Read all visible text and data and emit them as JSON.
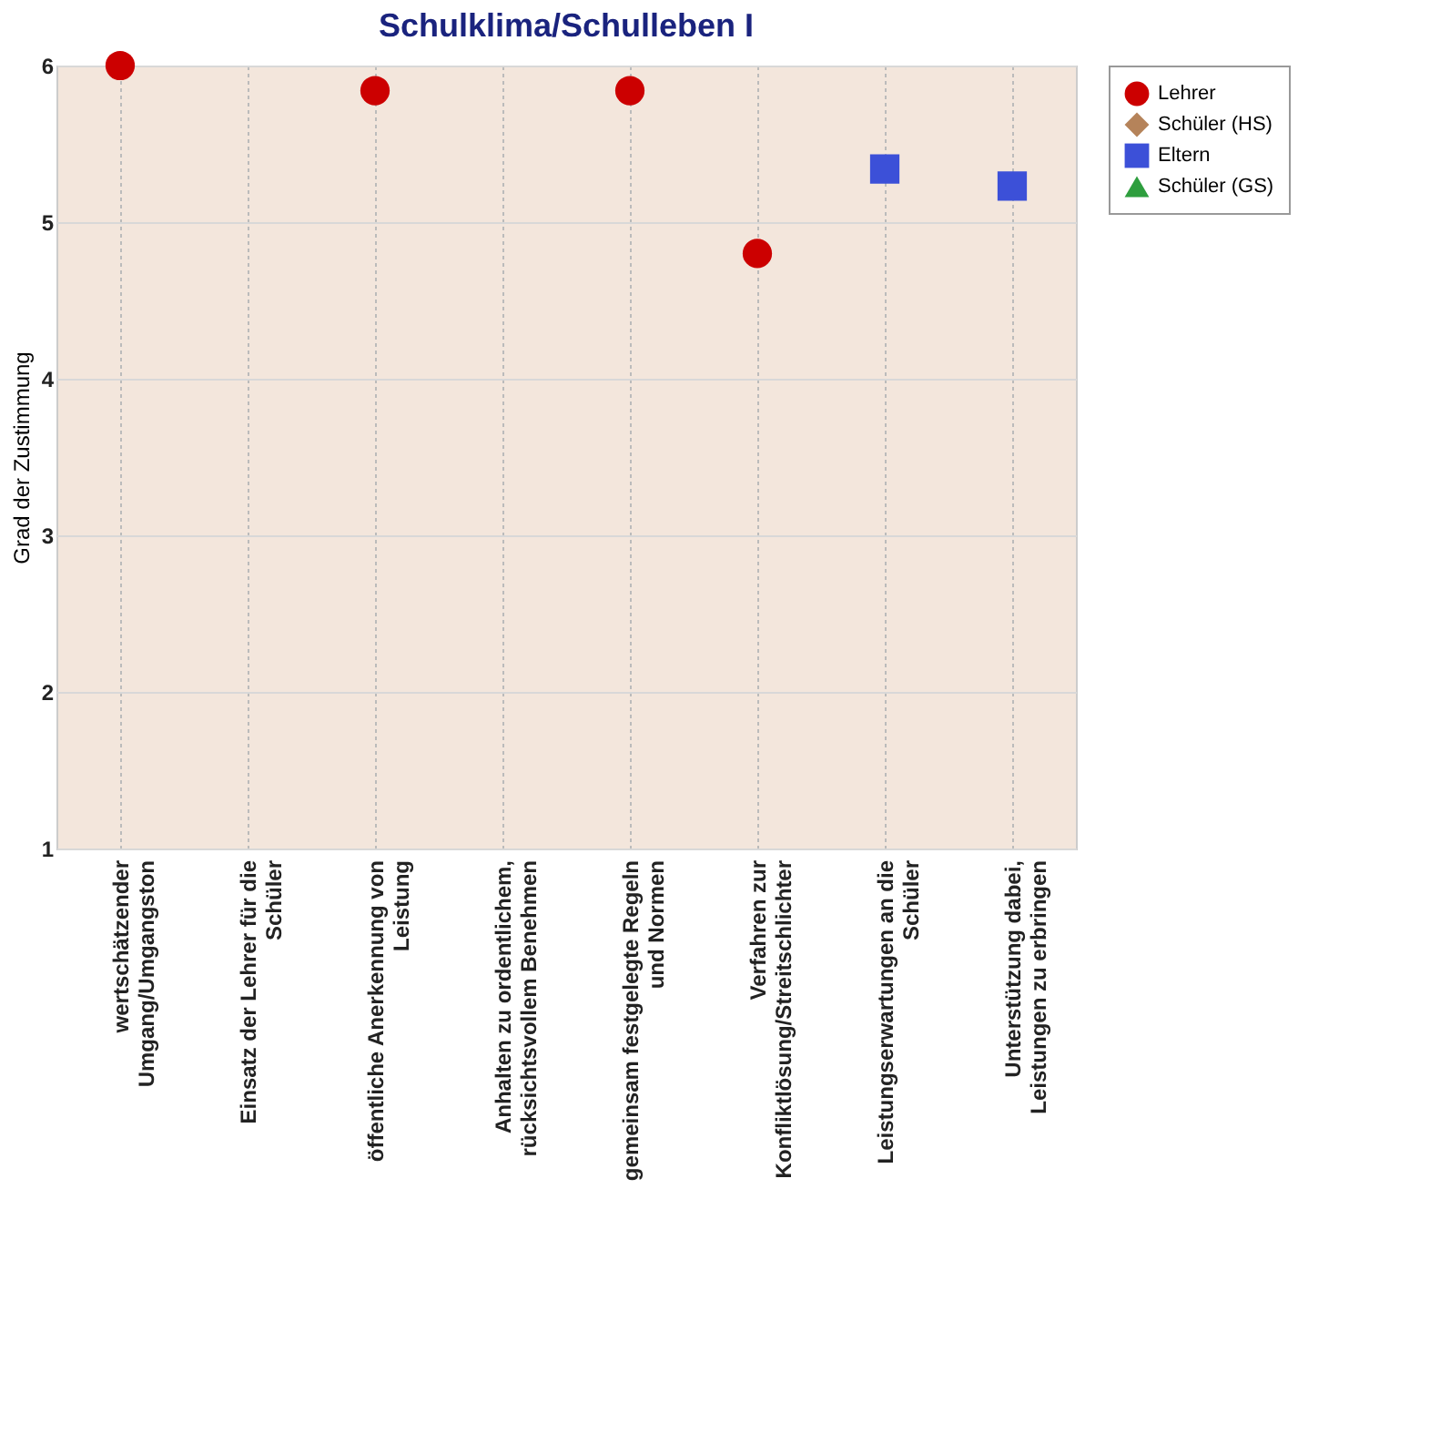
{
  "chart_data": {
    "type": "scatter",
    "title": "Schulklima/Schulleben I",
    "ylabel": "Grad der Zustimmung",
    "categories": [
      "wertschätzender\nUmgang/Umgangston",
      "Einsatz der Lehrer für die\nSchüler",
      "öffentliche Anerkennung von\nLeistung",
      "Anhalten zu ordentlichem,\nrücksichtsvollem Benehmen",
      "gemeinsam festgelegte Regeln\nund Normen",
      "Verfahren zur\nKonfliktlösung/Streitschlichter",
      "Leistungserwartungen an die\nSchüler",
      "Unterstützung dabei,\nLeistungen zu erbringen"
    ],
    "series": [
      {
        "name": "Lehrer",
        "color": "#cc0000",
        "marker": "circle",
        "values": [
          6.0,
          null,
          5.84,
          null,
          5.84,
          4.8,
          null,
          null
        ]
      },
      {
        "name": "Schüler (HS)",
        "color": "#b5835a",
        "marker": "diamond",
        "values": [
          null,
          null,
          null,
          null,
          null,
          null,
          null,
          null
        ]
      },
      {
        "name": "Eltern",
        "color": "#3c50d8",
        "marker": "square",
        "values": [
          null,
          null,
          null,
          null,
          null,
          null,
          5.34,
          5.23
        ]
      },
      {
        "name": "Schüler (GS)",
        "color": "#2e9e3e",
        "marker": "triangle",
        "values": [
          null,
          null,
          null,
          null,
          null,
          null,
          null,
          null
        ]
      }
    ],
    "ylim": [
      1,
      6
    ],
    "yticks": [
      1,
      2,
      3,
      4,
      5,
      6
    ],
    "grid": true,
    "legend": "right"
  }
}
